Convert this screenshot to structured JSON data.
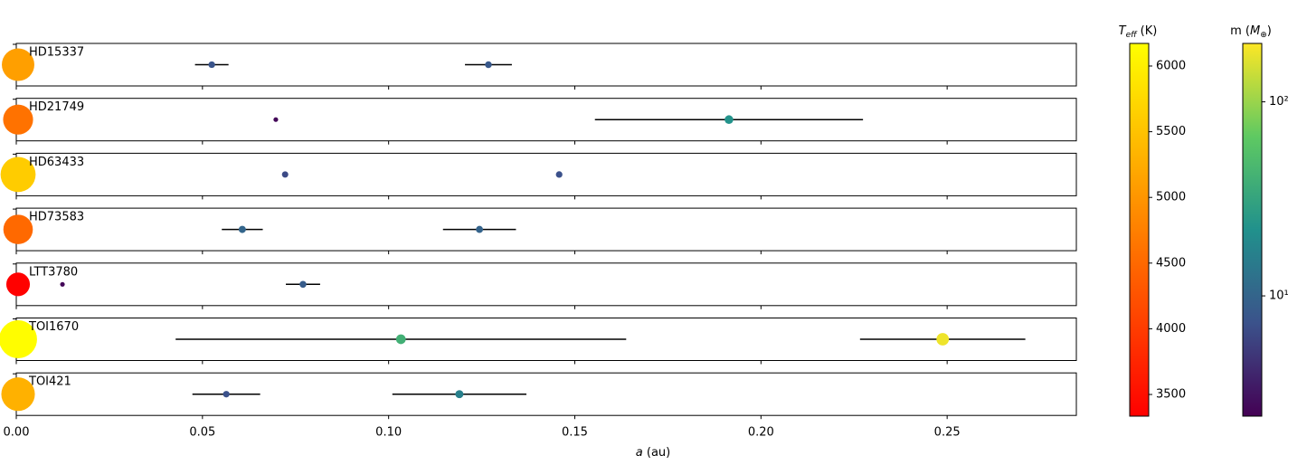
{
  "chart_data": {
    "type": "scatter",
    "x_label": {
      "symbol": "a",
      "unit": "(au)"
    },
    "xlim": [
      0,
      0.2847
    ],
    "xticks": [
      {
        "value": 0,
        "label": "0.00"
      },
      {
        "value": 0.05,
        "label": "0.05"
      },
      {
        "value": 0.1,
        "label": "0.10"
      },
      {
        "value": 0.15,
        "label": "0.15"
      },
      {
        "value": 0.2,
        "label": "0.20"
      },
      {
        "value": 0.25,
        "label": "0.25"
      }
    ],
    "systems": [
      {
        "name": "HD15337",
        "teff": 5100,
        "x": [
          0.0525,
          0.1268
        ],
        "x_err": [
          0.0045,
          0.0063
        ],
        "mass": [
          7.5,
          8.1
        ]
      },
      {
        "name": "HD21749",
        "teff": 4600,
        "x": [
          0.0697,
          0.1914
        ],
        "x_err": [
          null,
          0.036
        ],
        "mass": [
          2.6,
          22.7
        ]
      },
      {
        "name": "HD63433",
        "teff": 5600,
        "x": [
          0.0722,
          0.1458
        ],
        "x_err": [
          null,
          null
        ],
        "mass": [
          6.5,
          7.2
        ]
      },
      {
        "name": "HD73583",
        "teff": 4500,
        "x": [
          0.0607,
          0.1244
        ],
        "x_err": [
          0.0055,
          0.0098
        ],
        "mass": [
          10.2,
          9.7
        ]
      },
      {
        "name": "LTT3780",
        "teff": 3350,
        "x": [
          0.0124,
          0.077
        ],
        "x_err": [
          null,
          0.0046
        ],
        "mass": [
          2.6,
          8.6
        ]
      },
      {
        "name": "TOI1670",
        "teff": 6150,
        "x": [
          0.1033,
          0.2488
        ],
        "x_err": [
          0.0605,
          0.0222
        ],
        "mass": [
          40,
          180
        ]
      },
      {
        "name": "TOI421",
        "teff": 5300,
        "x": [
          0.0564,
          0.119
        ],
        "x_err": [
          0.0091,
          0.018
        ],
        "mass": [
          7.2,
          16.4
        ]
      }
    ],
    "colorbars": [
      {
        "label_parts": [
          "T",
          "eff",
          "(K)"
        ],
        "lim": [
          3335,
          6172
        ],
        "scale": "linear",
        "colormap": "autumn",
        "ticks": [
          3500,
          4000,
          4500,
          5000,
          5500,
          6000
        ]
      },
      {
        "label_parts": [
          "m (",
          "M",
          "⊕",
          ")"
        ],
        "lim": [
          2.4,
          200
        ],
        "scale": "log",
        "colormap": "viridis",
        "ticks": [
          {
            "value": 10,
            "label": "10¹"
          },
          {
            "value": 100,
            "label": "10²"
          }
        ]
      }
    ]
  }
}
